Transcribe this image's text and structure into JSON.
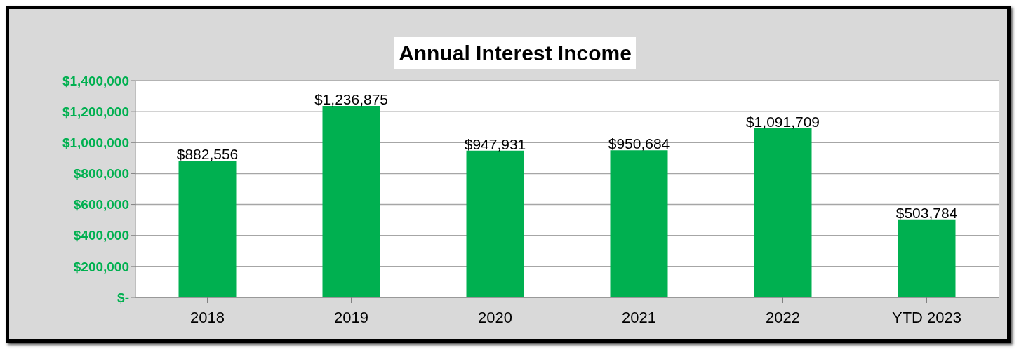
{
  "chart_data": {
    "type": "bar",
    "title": "Annual Interest Income",
    "categories": [
      "2018",
      "2019",
      "2020",
      "2021",
      "2022",
      "YTD 2023"
    ],
    "values": [
      882556,
      1236875,
      947931,
      950684,
      1091709,
      503784
    ],
    "value_labels": [
      "$882,556",
      "$1,236,875",
      "$947,931",
      "$950,684",
      "$1,091,709",
      "$503,784"
    ],
    "color": "#00b050",
    "ylim": [
      0,
      1400000
    ],
    "yticks": [
      {
        "value": 0,
        "label": "$-"
      },
      {
        "value": 200000,
        "label": "$200,000"
      },
      {
        "value": 400000,
        "label": "$400,000"
      },
      {
        "value": 600000,
        "label": "$600,000"
      },
      {
        "value": 800000,
        "label": "$800,000"
      },
      {
        "value": 1000000,
        "label": "$1,000,000"
      },
      {
        "value": 1200000,
        "label": "$1,200,000"
      },
      {
        "value": 1400000,
        "label": "$1,400,000"
      }
    ],
    "grid": "y"
  }
}
